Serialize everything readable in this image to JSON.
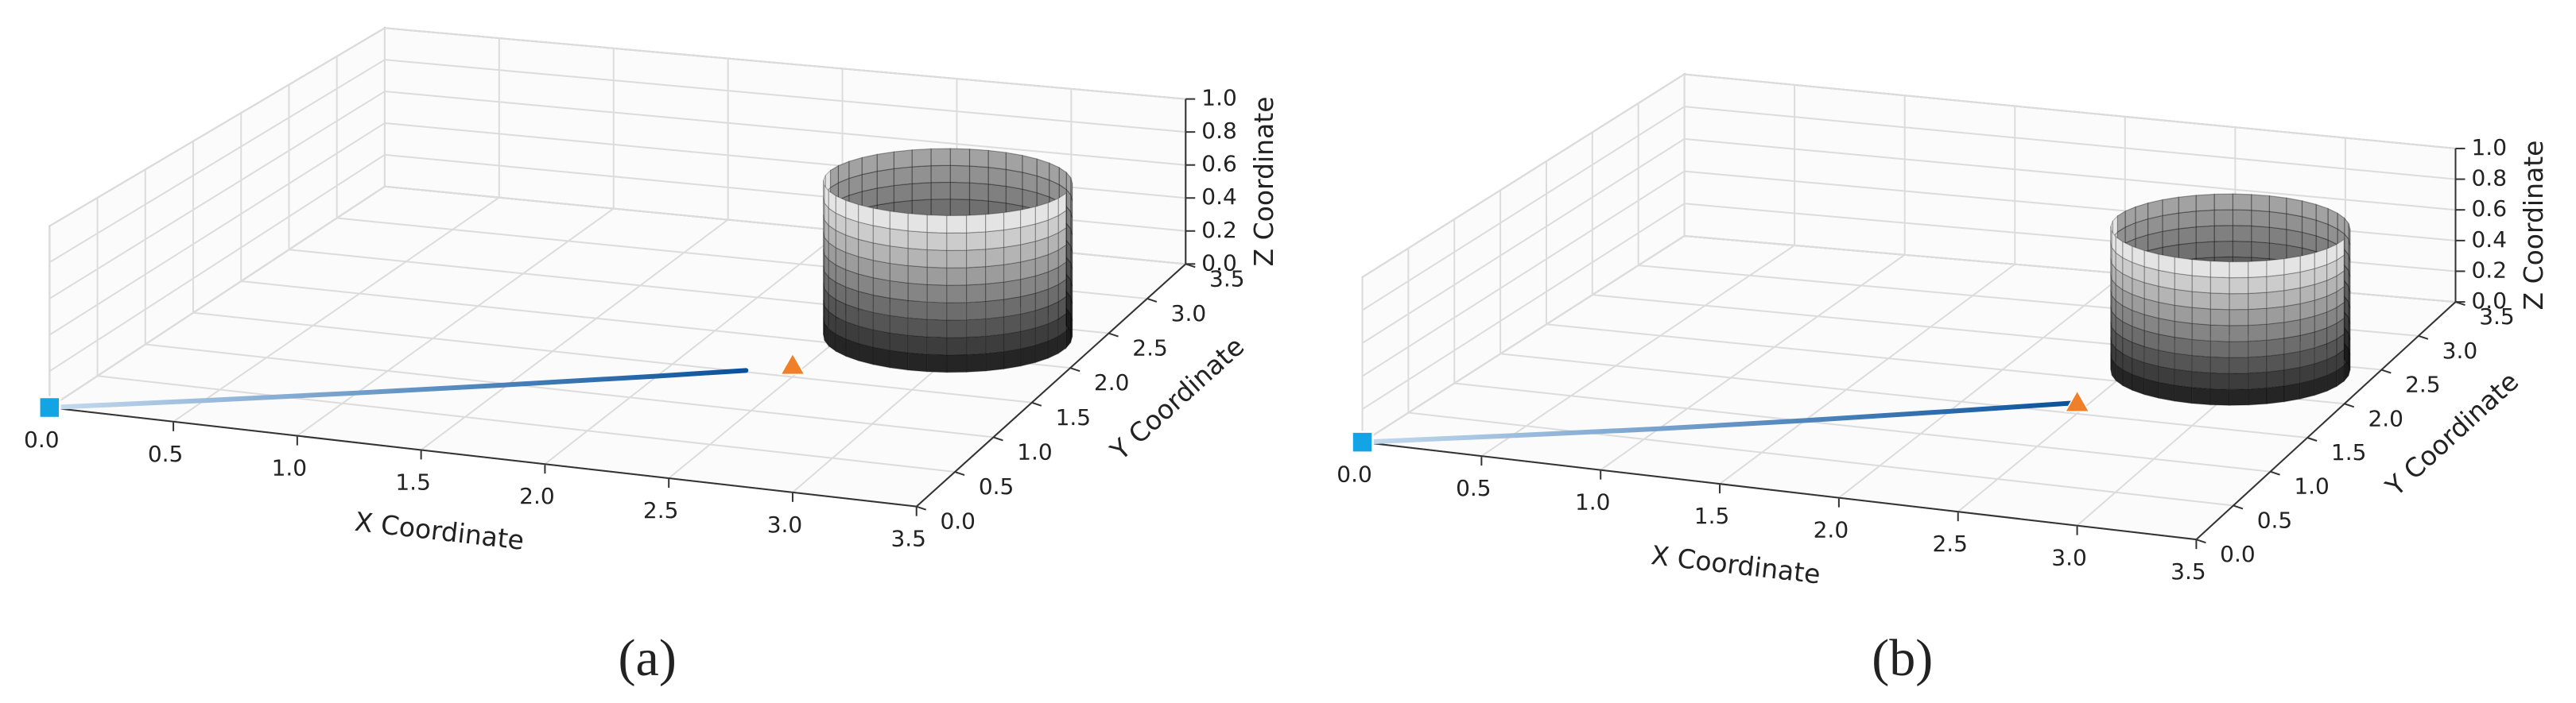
{
  "chart_data": [
    {
      "type": "line3d",
      "caption": "(a)",
      "xlabel": "X Coordinate",
      "ylabel": "Y Coordinate",
      "zlabel": "Z Coordinate",
      "xlim": [
        0,
        3.5
      ],
      "ylim": [
        0,
        3.5
      ],
      "zlim": [
        0,
        1
      ],
      "xticks": [
        {
          "value": 0,
          "label": "0.0"
        },
        0.5,
        {
          "value": 1,
          "label": "1.0"
        },
        1.5,
        {
          "value": 2,
          "label": "2.0"
        },
        2.5,
        {
          "value": 3,
          "label": "3.0"
        },
        3.5
      ],
      "yticks": [
        {
          "value": 0,
          "label": "0.0"
        },
        0.5,
        {
          "value": 1,
          "label": "1.0"
        },
        1.5,
        {
          "value": 2,
          "label": "2.0"
        },
        2.5,
        {
          "value": 3,
          "label": "3.0"
        },
        3.5
      ],
      "zticks": [
        {
          "value": 0,
          "label": "0.0"
        },
        0.2,
        0.4,
        0.6,
        0.8,
        {
          "value": 1,
          "label": "1.0"
        }
      ],
      "grid": true,
      "trajectory": {
        "x": [
          0,
          0.5,
          1.0,
          1.5,
          2.0,
          2.3
        ],
        "y": [
          0,
          0.33,
          0.66,
          0.99,
          1.32,
          1.52
        ],
        "z": [
          0,
          0,
          0,
          0,
          0,
          0
        ],
        "colors": [
          "#c6dbef",
          "#08519c"
        ]
      },
      "start": {
        "x": 0,
        "y": 0,
        "z": 0,
        "color": "#12a4e4"
      },
      "goal": {
        "x": 2.45,
        "y": 1.65,
        "z": 0,
        "color": "#f07f2a"
      },
      "obstacle": {
        "center": [
          2.9,
          2.25
        ],
        "radius": 0.5,
        "height": 0.9
      }
    },
    {
      "type": "line3d",
      "caption": "(b)",
      "xlabel": "X Coordinate",
      "ylabel": "Y Coordinate",
      "zlabel": "Z Coordinate",
      "xlim": [
        0,
        3.5
      ],
      "ylim": [
        0,
        3.5
      ],
      "zlim": [
        0,
        1
      ],
      "xticks": [
        {
          "value": 0,
          "label": "0.0"
        },
        0.5,
        {
          "value": 1,
          "label": "1.0"
        },
        1.5,
        {
          "value": 2,
          "label": "2.0"
        },
        2.5,
        {
          "value": 3,
          "label": "3.0"
        },
        3.5
      ],
      "yticks": [
        {
          "value": 0,
          "label": "0.0"
        },
        0.5,
        {
          "value": 1,
          "label": "1.0"
        },
        1.5,
        {
          "value": 2,
          "label": "2.0"
        },
        2.5,
        {
          "value": 3,
          "label": "3.0"
        },
        3.5
      ],
      "zticks": [
        {
          "value": 0,
          "label": "0.0"
        },
        0.2,
        0.4,
        0.6,
        0.8,
        {
          "value": 1,
          "label": "1.0"
        }
      ],
      "grid": true,
      "trajectory": {
        "x": [
          0,
          0.5,
          1.0,
          1.5,
          2.0,
          2.45
        ],
        "y": [
          0,
          0.34,
          0.67,
          1.01,
          1.35,
          1.65
        ],
        "z": [
          0,
          0,
          0,
          0,
          0,
          0
        ],
        "colors": [
          "#c6dbef",
          "#08519c"
        ]
      },
      "start": {
        "x": 0,
        "y": 0,
        "z": 0,
        "color": "#12a4e4"
      },
      "goal": {
        "x": 2.45,
        "y": 1.65,
        "z": 0,
        "color": "#f07f2a"
      },
      "obstacle": {
        "center": [
          2.9,
          2.3
        ],
        "radius": 0.5,
        "height": 0.9
      }
    }
  ]
}
